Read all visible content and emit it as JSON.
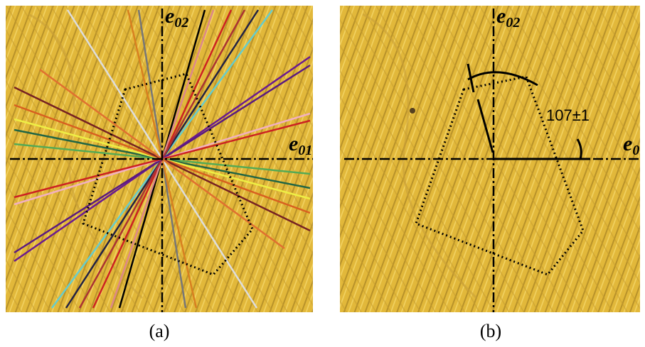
{
  "panels": [
    {
      "caption": "(a)",
      "axis_labels": [
        {
          "base": "e",
          "sub": "02"
        },
        {
          "base": "e",
          "sub": "01"
        }
      ]
    },
    {
      "caption": "(b)",
      "axis_labels": [
        {
          "base": "e",
          "sub": "02"
        },
        {
          "base": "e",
          "sub": "0"
        }
      ],
      "angle_label": "107±1"
    }
  ]
}
